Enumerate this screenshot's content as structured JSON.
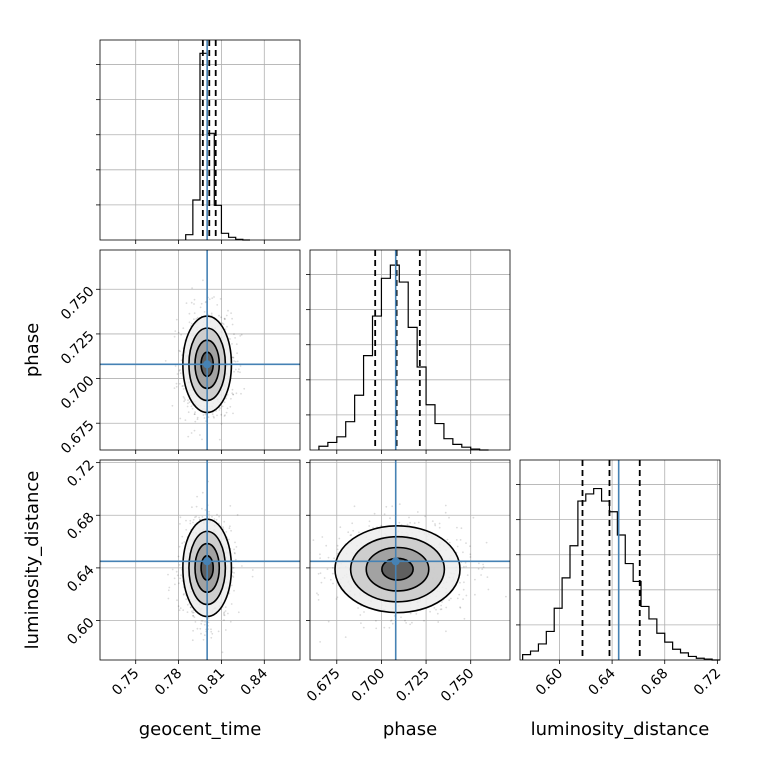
{
  "chart_data": {
    "type": "corner",
    "parameters": [
      {
        "name": "geocent_time",
        "range": [
          0.725,
          0.865
        ],
        "ticks": [
          0.75,
          0.78,
          0.81,
          0.84
        ],
        "tick_labels": [
          "0.75",
          "0.78",
          "0.81",
          "0.84"
        ]
      },
      {
        "name": "phase",
        "range": [
          0.66,
          0.772
        ],
        "ticks": [
          0.675,
          0.7,
          0.725,
          0.75
        ],
        "tick_labels": [
          "0.675",
          "0.700",
          "0.725",
          "0.750"
        ]
      },
      {
        "name": "luminosity_distance",
        "range": [
          0.57,
          0.722
        ],
        "ticks": [
          0.6,
          0.64,
          0.68,
          0.72
        ],
        "tick_labels": [
          "0.60",
          "0.64",
          "0.68",
          "0.72"
        ]
      }
    ],
    "truths": [
      0.8,
      0.708,
      0.645
    ],
    "truth_color": "#4682b4",
    "quantile_color": "#000000",
    "histograms": [
      {
        "parameter": "geocent_time",
        "bin_edges": [
          0.785,
          0.79,
          0.795,
          0.8,
          0.805,
          0.81,
          0.815,
          0.82,
          0.825,
          0.83
        ],
        "counts": [
          8,
          60,
          280,
          160,
          52,
          10,
          4,
          1,
          0
        ],
        "ymax": 300,
        "quantiles": [
          0.797,
          0.8015,
          0.806
        ]
      },
      {
        "parameter": "phase",
        "bin_edges": [
          0.665,
          0.67,
          0.675,
          0.68,
          0.685,
          0.69,
          0.695,
          0.7,
          0.705,
          0.71,
          0.715,
          0.72,
          0.725,
          0.73,
          0.735,
          0.74,
          0.745,
          0.75,
          0.755,
          0.76
        ],
        "counts": [
          4,
          8,
          14,
          30,
          58,
          100,
          142,
          182,
          196,
          178,
          130,
          88,
          48,
          28,
          12,
          6,
          3,
          1,
          0
        ],
        "ymax": 212,
        "quantiles": [
          0.6965,
          0.7085,
          0.7215
        ]
      },
      {
        "parameter": "luminosity_distance",
        "bin_edges": [
          0.572,
          0.578,
          0.584,
          0.59,
          0.596,
          0.602,
          0.608,
          0.614,
          0.62,
          0.626,
          0.632,
          0.638,
          0.644,
          0.65,
          0.656,
          0.662,
          0.668,
          0.674,
          0.68,
          0.686,
          0.692,
          0.698,
          0.704,
          0.71,
          0.716,
          0.722
        ],
        "counts": [
          6,
          10,
          18,
          32,
          58,
          92,
          128,
          178,
          186,
          192,
          178,
          166,
          140,
          108,
          88,
          60,
          46,
          30,
          20,
          12,
          8,
          4,
          2,
          1,
          0
        ],
        "ymax": 224,
        "quantiles": [
          0.6175,
          0.638,
          0.661
        ]
      }
    ],
    "joint": [
      {
        "x": "geocent_time",
        "y": "phase",
        "center": [
          0.8,
          0.708
        ],
        "spread": [
          0.0085,
          0.0135
        ],
        "levels_sigma": [
          0.5,
          1.0,
          1.5,
          2.0
        ]
      },
      {
        "x": "geocent_time",
        "y": "luminosity_distance",
        "center": [
          0.8,
          0.64
        ],
        "spread": [
          0.0085,
          0.0185
        ],
        "levels_sigma": [
          0.5,
          1.0,
          1.5,
          2.0
        ]
      },
      {
        "x": "phase",
        "y": "luminosity_distance",
        "center": [
          0.709,
          0.639
        ],
        "spread": [
          0.0175,
          0.0165
        ],
        "levels_sigma": [
          0.5,
          1.0,
          1.5,
          2.0
        ]
      }
    ],
    "grid": true
  }
}
